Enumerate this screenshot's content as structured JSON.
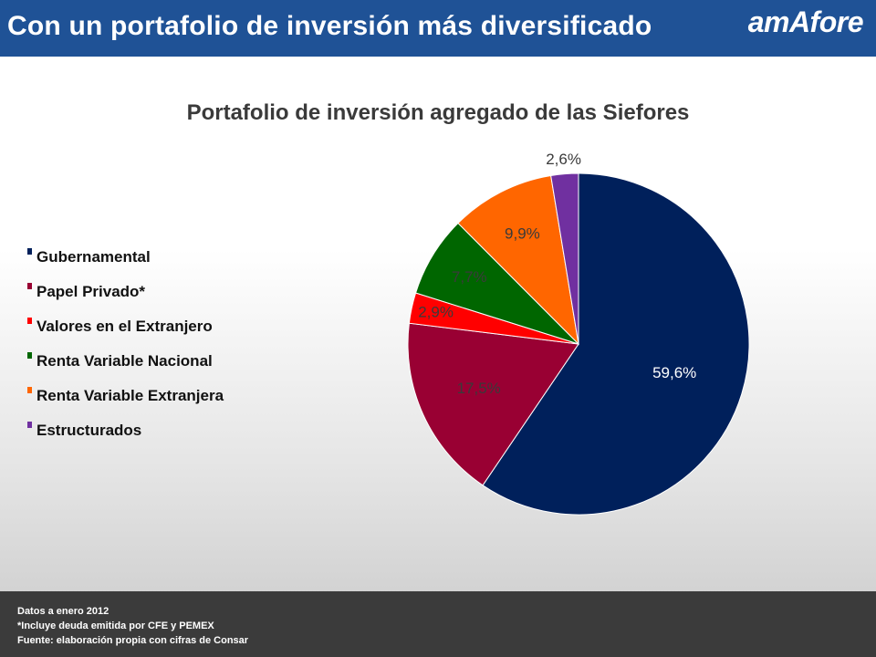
{
  "header": {
    "title": "Con un portafolio de inversión más diversificado",
    "logo_text": "amAfore"
  },
  "chart_data": {
    "type": "pie",
    "title": "Portafolio de inversión agregado de las Siefores",
    "slices": [
      {
        "label": "Gubernamental",
        "value": 59.6,
        "display": "59,6%",
        "color": "#00205b",
        "label_color": "#ffffff"
      },
      {
        "label": "Papel Privado*",
        "value": 17.5,
        "display": "17,5%",
        "color": "#990033",
        "label_color": "#3a3a3a"
      },
      {
        "label": "Valores en el Extranjero",
        "value": 2.9,
        "display": "2,9%",
        "color": "#ff0000",
        "label_color": "#3a3a3a"
      },
      {
        "label": "Renta Variable Nacional",
        "value": 7.7,
        "display": "7,7%",
        "color": "#006600",
        "label_color": "#3a3a3a"
      },
      {
        "label": "Renta Variable Extranjera",
        "value": 9.9,
        "display": "9,9%",
        "color": "#ff6600",
        "label_color": "#3a3a3a"
      },
      {
        "label": "Estructurados",
        "value": 2.6,
        "display": "2,6%",
        "color": "#7030a0",
        "label_color": "#3a3a3a"
      }
    ],
    "legend_placement": "left",
    "start_angle_deg": 0,
    "direction": "clockwise"
  },
  "footer": {
    "line1": "Datos a enero 2012",
    "line2": "*Incluye deuda emitida por CFE y PEMEX",
    "line3": "Fuente: elaboración propia con cifras de Consar"
  }
}
